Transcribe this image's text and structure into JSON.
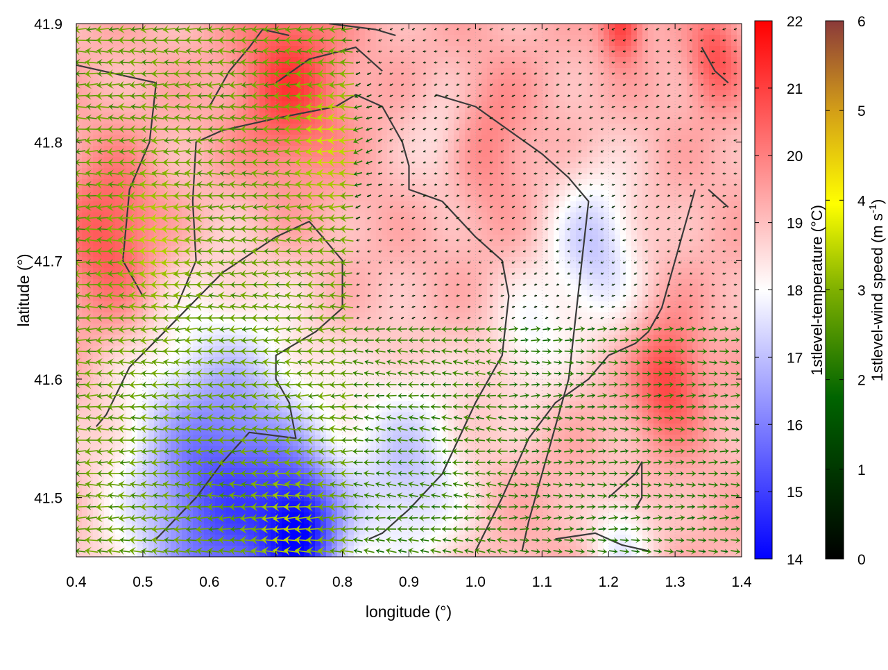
{
  "chart_data": {
    "type": "heatmap",
    "subtype": "temperature field with wind vectors and coastline contours",
    "xlabel": "longitude (°)",
    "ylabel": "latitude (°)",
    "xlim": [
      0.4,
      1.4
    ],
    "ylim": [
      41.45,
      41.9
    ],
    "x_ticks": [
      "0.4",
      "0.5",
      "0.6",
      "0.7",
      "0.8",
      "0.9",
      "1.0",
      "1.1",
      "1.2",
      "1.3",
      "1.4"
    ],
    "y_ticks": [
      "41.5",
      "41.6",
      "41.7",
      "41.8",
      "41.9"
    ],
    "grid": true,
    "colorbars": [
      {
        "label": "1stlevel-temperature (°C)",
        "range": [
          14,
          22
        ],
        "ticks": [
          "14",
          "15",
          "16",
          "17",
          "18",
          "19",
          "20",
          "21",
          "22"
        ],
        "colors": [
          "#0000ff",
          "#ffffff",
          "#ff0000"
        ]
      },
      {
        "label_main": "1stlevel-wind speed (m s",
        "label_sup": "-1",
        "label_end": ")",
        "range": [
          0,
          6
        ],
        "ticks": [
          "0",
          "1",
          "2",
          "3",
          "4",
          "5",
          "6"
        ],
        "colors": [
          "#000000",
          "#006400",
          "#7fb000",
          "#ffff00",
          "#d4a017",
          "#8b3a3a"
        ]
      }
    ],
    "temperature_field": {
      "base": 19.2,
      "anomalies": [
        {
          "lon": 0.72,
          "lat": 41.85,
          "dt": 1.8,
          "r": 0.08
        },
        {
          "lon": 0.45,
          "lat": 41.72,
          "dt": 1.6,
          "r": 0.07
        },
        {
          "lon": 0.62,
          "lat": 41.5,
          "dt": -4.0,
          "r": 0.14
        },
        {
          "lon": 0.74,
          "lat": 41.47,
          "dt": -3.5,
          "r": 0.06
        },
        {
          "lon": 0.9,
          "lat": 41.52,
          "dt": -2.0,
          "r": 0.09
        },
        {
          "lon": 1.18,
          "lat": 41.71,
          "dt": -2.0,
          "r": 0.07
        },
        {
          "lon": 1.08,
          "lat": 41.63,
          "dt": -1.2,
          "r": 0.06
        },
        {
          "lon": 1.29,
          "lat": 41.6,
          "dt": 1.8,
          "r": 0.05
        },
        {
          "lon": 1.22,
          "lat": 41.9,
          "dt": 2.0,
          "r": 0.03
        },
        {
          "lon": 1.36,
          "lat": 41.87,
          "dt": 1.5,
          "r": 0.04
        },
        {
          "lon": 1.02,
          "lat": 41.8,
          "dt": 0.8,
          "r": 0.06
        },
        {
          "lon": 1.22,
          "lat": 41.46,
          "dt": -1.5,
          "r": 0.05
        },
        {
          "lon": 0.95,
          "lat": 41.8,
          "dt": -0.8,
          "r": 0.05
        }
      ]
    },
    "wind_field": {
      "note": "Predominantly easterly flow (vectors pointing west) over the western half; weak winds in the centre; westerly flow near the eastern edge.",
      "regions": [
        {
          "lon_min": 0.4,
          "lon_max": 0.82,
          "lat_min": 41.45,
          "lat_max": 41.9,
          "direction_deg": 180,
          "speed": 2.0
        },
        {
          "lon_min": 0.82,
          "lon_max": 1.05,
          "lat_min": 41.45,
          "lat_max": 41.65,
          "direction_deg": 175,
          "speed": 1.6
        },
        {
          "lon_min": 0.82,
          "lon_max": 1.35,
          "lat_min": 41.65,
          "lat_max": 41.9,
          "direction_deg": 200,
          "speed": 0.4
        },
        {
          "lon_min": 1.05,
          "lon_max": 1.4,
          "lat_min": 41.45,
          "lat_max": 41.65,
          "direction_deg": 0,
          "speed": 1.4
        }
      ],
      "maxima": [
        {
          "lon": 0.78,
          "lat": 41.8,
          "speed": 3.2
        },
        {
          "lon": 0.52,
          "lat": 41.72,
          "speed": 3.0
        },
        {
          "lon": 0.72,
          "lat": 41.47,
          "speed": 3.0
        }
      ]
    },
    "coastline_segments": [
      [
        [
          0.52,
          41.465
        ],
        [
          0.58,
          41.5
        ],
        [
          0.62,
          41.53
        ],
        [
          0.66,
          41.555
        ],
        [
          0.73,
          41.55
        ],
        [
          0.72,
          41.58
        ],
        [
          0.7,
          41.6
        ],
        [
          0.7,
          41.62
        ],
        [
          0.76,
          41.64
        ],
        [
          0.8,
          41.66
        ],
        [
          0.8,
          41.7
        ],
        [
          0.77,
          41.72
        ],
        [
          0.75,
          41.733
        ],
        [
          0.7,
          41.72
        ],
        [
          0.62,
          41.69
        ],
        [
          0.55,
          41.65
        ],
        [
          0.48,
          41.61
        ],
        [
          0.445,
          41.57
        ],
        [
          0.43,
          41.56
        ]
      ],
      [
        [
          0.5,
          41.67
        ],
        [
          0.47,
          41.7
        ],
        [
          0.48,
          41.76
        ],
        [
          0.51,
          41.8
        ],
        [
          0.52,
          41.85
        ],
        [
          0.44,
          41.86
        ],
        [
          0.4,
          41.865
        ]
      ],
      [
        [
          0.55,
          41.66
        ],
        [
          0.58,
          41.7
        ],
        [
          0.575,
          41.75
        ],
        [
          0.58,
          41.8
        ],
        [
          0.62,
          41.81
        ],
        [
          0.7,
          41.82
        ],
        [
          0.79,
          41.83
        ],
        [
          0.82,
          41.84
        ],
        [
          0.86,
          41.83
        ],
        [
          0.89,
          41.8
        ],
        [
          0.9,
          41.78
        ],
        [
          0.9,
          41.76
        ],
        [
          0.95,
          41.75
        ],
        [
          1.0,
          41.72
        ],
        [
          1.04,
          41.7
        ],
        [
          1.05,
          41.67
        ],
        [
          1.04,
          41.62
        ],
        [
          1.0,
          41.58
        ],
        [
          0.95,
          41.52
        ],
        [
          0.9,
          41.49
        ],
        [
          0.88,
          41.48
        ],
        [
          0.86,
          41.47
        ],
        [
          0.84,
          41.465
        ]
      ],
      [
        [
          0.6,
          41.83
        ],
        [
          0.63,
          41.86
        ],
        [
          0.66,
          41.88
        ],
        [
          0.68,
          41.895
        ],
        [
          0.72,
          41.89
        ]
      ],
      [
        [
          0.78,
          41.9
        ],
        [
          0.85,
          41.895
        ],
        [
          0.88,
          41.89
        ]
      ],
      [
        [
          0.86,
          41.86
        ],
        [
          0.82,
          41.88
        ],
        [
          0.75,
          41.87
        ],
        [
          0.7,
          41.85
        ]
      ],
      [
        [
          0.94,
          41.84
        ],
        [
          1.0,
          41.83
        ],
        [
          1.05,
          41.81
        ],
        [
          1.1,
          41.79
        ],
        [
          1.14,
          41.77
        ],
        [
          1.17,
          41.75
        ],
        [
          1.16,
          41.7
        ],
        [
          1.15,
          41.65
        ],
        [
          1.14,
          41.6
        ],
        [
          1.12,
          41.56
        ],
        [
          1.1,
          41.52
        ],
        [
          1.08,
          41.48
        ],
        [
          1.07,
          41.455
        ]
      ],
      [
        [
          1.0,
          41.455
        ],
        [
          1.04,
          41.5
        ],
        [
          1.08,
          41.55
        ],
        [
          1.12,
          41.58
        ],
        [
          1.17,
          41.6
        ],
        [
          1.2,
          41.62
        ],
        [
          1.24,
          41.63
        ],
        [
          1.26,
          41.64
        ],
        [
          1.28,
          41.66
        ],
        [
          1.3,
          41.7
        ],
        [
          1.32,
          41.74
        ],
        [
          1.33,
          41.76
        ]
      ],
      [
        [
          1.12,
          41.465
        ],
        [
          1.18,
          41.47
        ],
        [
          1.22,
          41.46
        ],
        [
          1.26,
          41.455
        ]
      ],
      [
        [
          1.2,
          41.5
        ],
        [
          1.24,
          41.52
        ],
        [
          1.25,
          41.53
        ],
        [
          1.25,
          41.5
        ],
        [
          1.24,
          41.49
        ]
      ],
      [
        [
          1.35,
          41.76
        ],
        [
          1.37,
          41.75
        ],
        [
          1.38,
          41.745
        ]
      ],
      [
        [
          1.34,
          41.88
        ],
        [
          1.36,
          41.86
        ],
        [
          1.38,
          41.85
        ]
      ]
    ]
  }
}
